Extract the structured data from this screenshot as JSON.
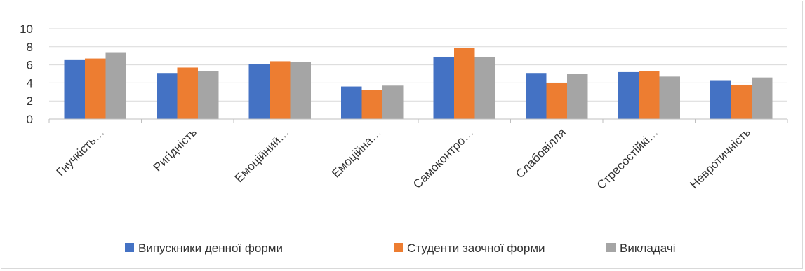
{
  "chart_data": {
    "type": "bar",
    "title": "",
    "xlabel": "",
    "ylabel": "",
    "ylim": [
      0,
      10
    ],
    "yticks": [
      0,
      2,
      4,
      6,
      8,
      10
    ],
    "grid": "horizontal",
    "legend_position": "bottom",
    "categories": [
      "Гнучкість…",
      "Ригідність",
      "Емоційний…",
      "Емоційна…",
      "Самоконтро…",
      "Слабовілля",
      "Стресостійкі…",
      "Невротичність"
    ],
    "series": [
      {
        "name": "Випускники денної форми",
        "color": "#4472c4",
        "values": [
          6.6,
          5.1,
          6.1,
          3.6,
          6.9,
          5.1,
          5.2,
          4.3
        ]
      },
      {
        "name": "Студенти заочної форми",
        "color": "#ed7d31",
        "values": [
          6.7,
          5.7,
          6.4,
          3.2,
          7.9,
          4.0,
          5.3,
          3.8
        ]
      },
      {
        "name": "Викладачі",
        "color": "#a5a5a5",
        "values": [
          7.4,
          5.3,
          6.3,
          3.7,
          6.9,
          5.0,
          4.7,
          4.6
        ]
      }
    ]
  }
}
